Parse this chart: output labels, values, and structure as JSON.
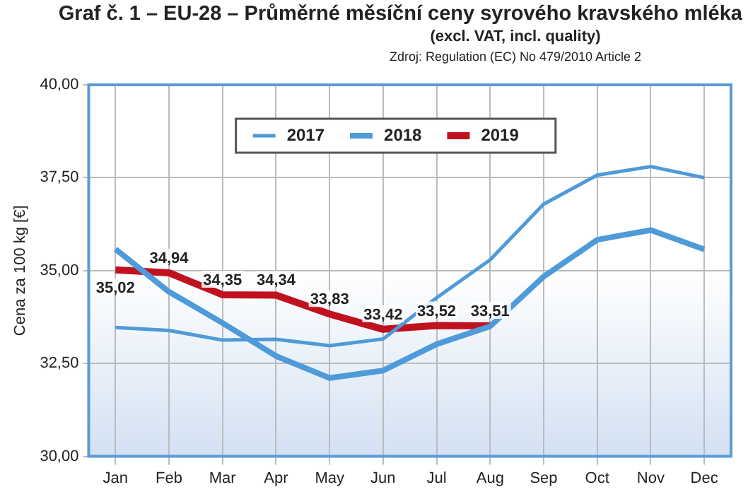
{
  "chart_data": {
    "type": "line",
    "title": "Graf č. 1 – EU-28 – Průměrné měsíční ceny syrového kravského mléka",
    "subtitle": "(excl. VAT, incl. quality)",
    "annotations": [
      "Zdroj: Regulation (EC) No 479/2010 Article 2"
    ],
    "ylabel": "Cena za 100 kg [€]",
    "categories": [
      "Jan",
      "Feb",
      "Mar",
      "Apr",
      "May",
      "Jun",
      "Jul",
      "Aug",
      "Sep",
      "Oct",
      "Nov",
      "Dec"
    ],
    "series": [
      {
        "name": "2017",
        "color": "#4f9ad8",
        "values": [
          33.47,
          33.39,
          33.13,
          33.15,
          32.98,
          33.16,
          34.27,
          35.29,
          36.79,
          37.57,
          37.8,
          37.5
        ]
      },
      {
        "name": "2018",
        "color": "#4f9ad8",
        "values": [
          35.58,
          34.43,
          33.59,
          32.7,
          32.11,
          32.31,
          33.02,
          33.5,
          34.84,
          35.83,
          36.09,
          35.57
        ]
      },
      {
        "name": "2019",
        "color": "#c0111f",
        "values": [
          35.02,
          34.94,
          34.35,
          34.34,
          33.83,
          33.42,
          33.52,
          33.51,
          null,
          null,
          null,
          null
        ],
        "value_labels": [
          "35,02",
          "34,94",
          "34,35",
          "34,34",
          "33,83",
          "33,42",
          "33,52",
          "33,51",
          null,
          null,
          null,
          null
        ]
      }
    ],
    "ylim": [
      30,
      40
    ],
    "yticks": [
      {
        "value": 30,
        "label": "30,00"
      },
      {
        "value": 32.5,
        "label": "32,50"
      },
      {
        "value": 35,
        "label": "35,00"
      },
      {
        "value": 37.5,
        "label": "37,50"
      },
      {
        "value": 40,
        "label": "40,00"
      }
    ],
    "grid": true,
    "legend": "top",
    "marker": "none",
    "line_style": "solid"
  }
}
